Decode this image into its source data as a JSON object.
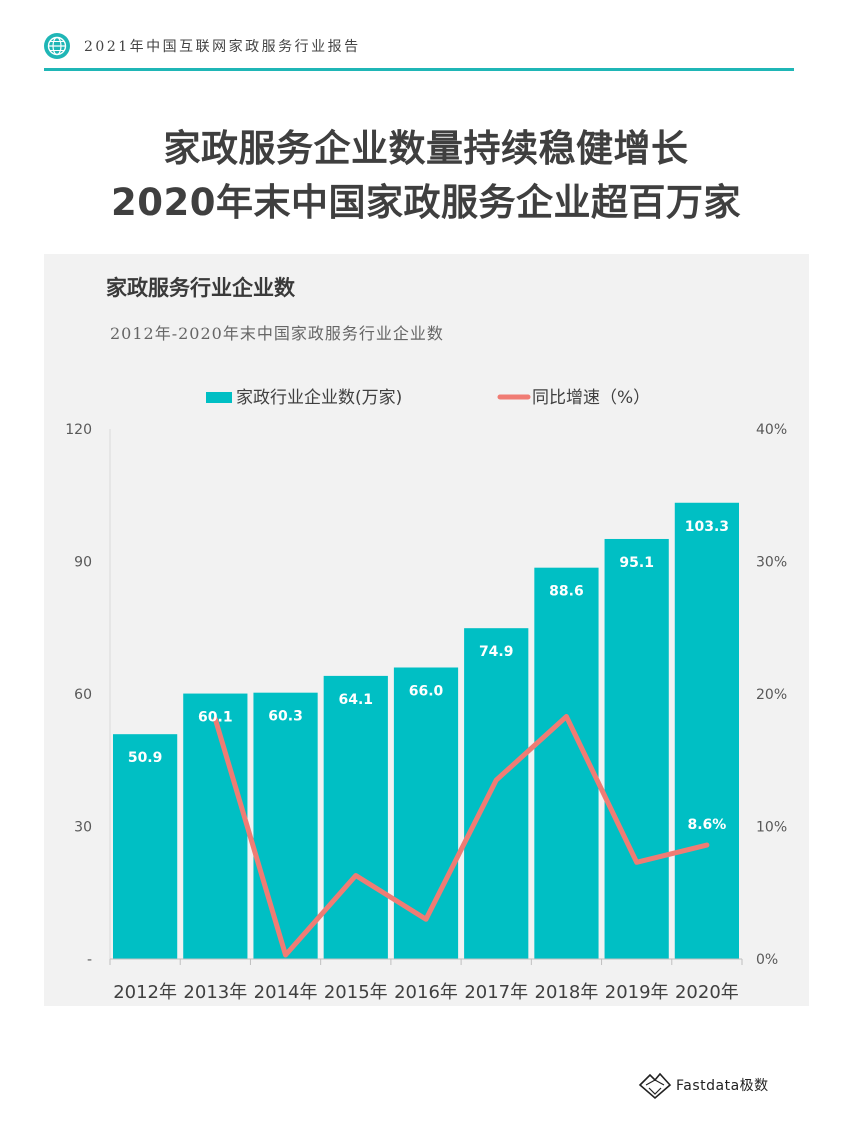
{
  "header": {
    "text": "2021年中国互联网家政服务行业报告",
    "icon": "globe-icon"
  },
  "page_title": {
    "line1": "家政服务企业数量持续稳健增长",
    "line2": "2020年末中国家政服务企业超百万家"
  },
  "panel": {
    "title": "家政服务行业企业数",
    "subtitle": "2012年-2020年末中国家政服务行业企业数"
  },
  "chart_data": {
    "type": "bar",
    "categories": [
      "2012年",
      "2013年",
      "2014年",
      "2015年",
      "2016年",
      "2017年",
      "2018年",
      "2019年",
      "2020年"
    ],
    "series": [
      {
        "name": "家政行业企业数(万家)",
        "type": "bar",
        "axis": "left",
        "color": "#00bfc4",
        "values": [
          50.9,
          60.1,
          60.3,
          64.1,
          66.0,
          74.9,
          88.6,
          95.1,
          103.3
        ],
        "labels": [
          "50.9",
          "60.1",
          "60.3",
          "64.1",
          "66.0",
          "74.9",
          "88.6",
          "95.1",
          "103.3"
        ]
      },
      {
        "name": "同比增速（%）",
        "type": "line",
        "axis": "right",
        "color": "#f07c74",
        "values": [
          null,
          18.1,
          0.3,
          6.3,
          3.0,
          13.5,
          18.3,
          7.3,
          8.6
        ],
        "labels": [
          "",
          "",
          "",
          "",
          "",
          "",
          "",
          "",
          "8.6%"
        ]
      }
    ],
    "y_left": {
      "ylim": [
        0,
        120
      ],
      "ticks": [
        "-",
        "30",
        "60",
        "90",
        "120"
      ]
    },
    "y_right": {
      "ylim": [
        0,
        40
      ],
      "ticks": [
        "0%",
        "10%",
        "20%",
        "30%",
        "40%"
      ]
    },
    "grid": false,
    "legend_position": "top"
  },
  "footer": {
    "brand": "Fastdata极数"
  }
}
